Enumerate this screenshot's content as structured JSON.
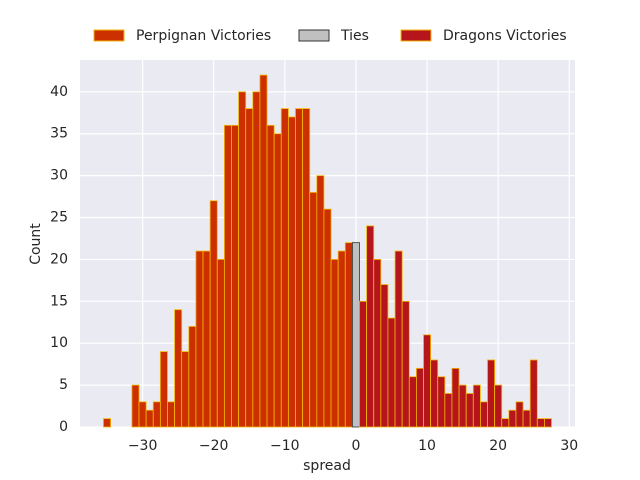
{
  "chart_data": {
    "type": "histogram",
    "xlabel": "spread",
    "ylabel": "Count",
    "xlim": [
      -38.8,
      30.8
    ],
    "ylim": [
      0,
      43.8
    ],
    "xticks": [
      {
        "value": -30,
        "label": "−30"
      },
      {
        "value": -20,
        "label": "−20"
      },
      {
        "value": -10,
        "label": "−10"
      },
      0,
      10,
      20,
      30
    ],
    "yticks": [
      0,
      5,
      10,
      15,
      20,
      25,
      30,
      35,
      40
    ],
    "grid": true,
    "legend": "top",
    "series": [
      {
        "name": "Perpignan Victories",
        "color": "#cc2f00",
        "edgecolor": "#f2b705",
        "bins": [
          -35.5,
          -34.5,
          -33.5,
          -32.5,
          -31.5,
          -30.5,
          -29.5,
          -28.5,
          -27.5,
          -26.5,
          -25.5,
          -24.5,
          -23.5,
          -22.5,
          -21.5,
          -20.5,
          -19.5,
          -18.5,
          -17.5,
          -16.5,
          -15.5,
          -14.5,
          -13.5,
          -12.5,
          -11.5,
          -10.5,
          -9.5,
          -8.5,
          -7.5,
          -6.5,
          -5.5,
          -4.5,
          -3.5,
          -2.5,
          -1.5,
          -0.5
        ],
        "values": [
          1,
          0,
          0,
          0,
          5,
          3,
          2,
          3,
          9,
          3,
          14,
          9,
          12,
          21,
          21,
          27,
          20,
          36,
          36,
          40,
          38,
          40,
          42,
          36,
          35,
          38,
          37,
          38,
          38,
          28,
          30,
          26,
          20,
          21,
          22
        ]
      },
      {
        "name": "Ties",
        "color": "#c0c0c0",
        "edgecolor": "#333333",
        "bins": [
          -0.5,
          0.5
        ],
        "values": [
          22
        ]
      },
      {
        "name": "Dragons Victories",
        "color": "#b5151b",
        "edgecolor": "#f2b705",
        "bins": [
          0.5,
          1.5,
          2.5,
          3.5,
          4.5,
          5.5,
          6.5,
          7.5,
          8.5,
          9.5,
          10.5,
          11.5,
          12.5,
          13.5,
          14.5,
          15.5,
          16.5,
          17.5,
          18.5,
          19.5,
          20.5,
          21.5,
          22.5,
          23.5,
          24.5,
          25.5,
          26.5,
          27.5
        ],
        "values": [
          15,
          24,
          20,
          17,
          13,
          21,
          15,
          6,
          7,
          11,
          8,
          6,
          4,
          7,
          5,
          4,
          5,
          3,
          8,
          5,
          1,
          2,
          3,
          2,
          8,
          1,
          1
        ]
      }
    ]
  }
}
